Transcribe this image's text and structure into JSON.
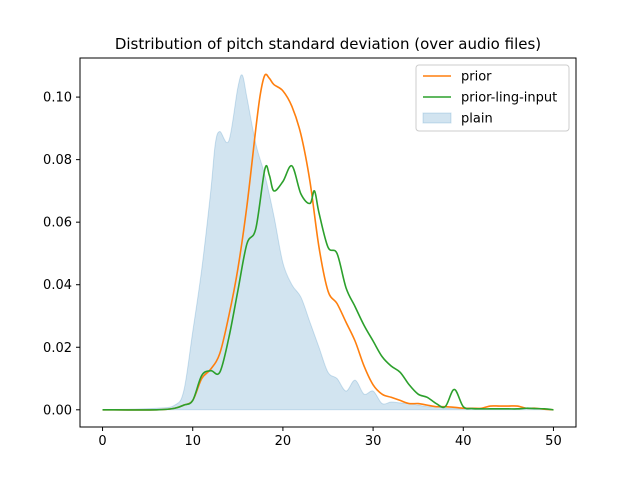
{
  "chart_data": {
    "type": "line",
    "title": "Distribution of pitch standard deviation (over audio files)",
    "xlabel": "",
    "ylabel": "",
    "xlim": [
      -2.5,
      52.5
    ],
    "ylim": [
      -0.0055,
      0.1125
    ],
    "xticks": [
      0,
      10,
      20,
      30,
      40,
      50
    ],
    "xtick_labels": [
      "0",
      "10",
      "20",
      "30",
      "40",
      "50"
    ],
    "yticks": [
      0.0,
      0.02,
      0.04,
      0.06,
      0.08,
      0.1
    ],
    "ytick_labels": [
      "0.00",
      "0.02",
      "0.04",
      "0.06",
      "0.08",
      "0.10"
    ],
    "grid": false,
    "legend_position": "upper right",
    "series": [
      {
        "name": "prior",
        "kind": "line",
        "color": "#ff7f0e",
        "x": [
          0,
          6,
          8,
          9,
          10,
          11,
          12,
          13,
          14,
          15,
          16,
          17,
          17.5,
          18,
          18.5,
          19,
          20,
          21,
          22,
          23,
          24,
          25,
          26,
          27,
          28,
          29,
          30,
          31,
          32,
          33,
          34,
          35,
          36,
          37,
          38,
          39,
          40,
          41,
          42,
          43,
          44,
          45,
          46,
          47,
          48,
          49,
          50
        ],
        "y": [
          0,
          0,
          0.0005,
          0.0015,
          0.003,
          0.01,
          0.013,
          0.018,
          0.03,
          0.045,
          0.065,
          0.09,
          0.101,
          0.107,
          0.106,
          0.104,
          0.102,
          0.097,
          0.088,
          0.073,
          0.052,
          0.038,
          0.034,
          0.028,
          0.022,
          0.014,
          0.008,
          0.005,
          0.004,
          0.003,
          0.002,
          0.002,
          0.0015,
          0.001,
          0.001,
          0.0008,
          0.0005,
          0.0005,
          0.0005,
          0.0012,
          0.0012,
          0.0012,
          0.0012,
          0.0005,
          0.0005,
          0.0002,
          0
        ]
      },
      {
        "name": "prior-ling-input",
        "kind": "line",
        "color": "#2ca02c",
        "x": [
          0,
          6,
          8,
          9,
          10,
          11,
          12,
          13,
          14,
          15,
          16,
          17,
          18,
          18.5,
          19,
          20,
          21,
          22,
          23,
          23.5,
          24,
          25,
          26,
          27,
          28,
          29,
          30,
          31,
          32,
          33,
          34,
          35,
          36,
          37,
          38,
          39,
          40,
          41,
          42,
          43,
          44,
          45,
          46,
          47,
          48,
          49,
          50
        ],
        "y": [
          0,
          0,
          0.0005,
          0.0015,
          0.003,
          0.011,
          0.0125,
          0.012,
          0.023,
          0.038,
          0.053,
          0.058,
          0.077,
          0.075,
          0.07,
          0.073,
          0.078,
          0.069,
          0.066,
          0.07,
          0.063,
          0.052,
          0.05,
          0.039,
          0.033,
          0.027,
          0.022,
          0.017,
          0.014,
          0.012,
          0.008,
          0.005,
          0.004,
          0.002,
          0.001,
          0.0065,
          0.001,
          0.0004,
          0.0003,
          0.0003,
          0.0003,
          0.0003,
          0.0003,
          0.0005,
          0.0004,
          0.0003,
          0
        ]
      },
      {
        "name": "plain",
        "kind": "area",
        "color": "#1f77b4",
        "fill": "#c6dbef",
        "x": [
          0,
          6,
          8,
          9,
          10,
          11,
          12,
          12.5,
          13,
          14,
          15,
          15.5,
          16,
          17,
          18,
          19,
          20,
          21,
          22,
          23,
          24,
          25,
          26,
          27,
          28,
          29,
          30,
          31,
          32,
          33,
          34,
          35,
          36,
          37,
          38,
          39,
          40,
          41,
          42,
          43,
          44,
          45,
          46,
          47,
          48,
          49,
          50
        ],
        "y": [
          0,
          0.0005,
          0.0015,
          0.006,
          0.025,
          0.045,
          0.07,
          0.085,
          0.089,
          0.086,
          0.103,
          0.107,
          0.1,
          0.085,
          0.075,
          0.062,
          0.047,
          0.04,
          0.036,
          0.028,
          0.02,
          0.012,
          0.01,
          0.006,
          0.0095,
          0.005,
          0.006,
          0.002,
          0.0025,
          0.0022,
          0.002,
          0.0015,
          0.001,
          0.001,
          0.0005,
          0.0005,
          0.0005,
          0.0003,
          0.0003,
          0.0003,
          0.0003,
          0.0002,
          0.0002,
          0.0001,
          0.0001,
          0,
          0
        ]
      }
    ]
  }
}
